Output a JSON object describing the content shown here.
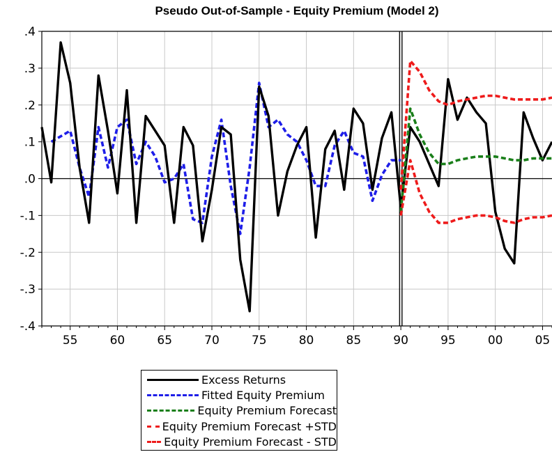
{
  "chart_data": {
    "type": "line",
    "title": "Pseudo Out-of-Sample - Equity Premium (Model 2)",
    "xlabel": "",
    "ylabel": "",
    "xlim": [
      1952,
      2006
    ],
    "ylim": [
      -0.4,
      0.4
    ],
    "x_ticks": [
      1955,
      1960,
      1965,
      1970,
      1975,
      1980,
      1985,
      1990,
      1995,
      2000,
      2005
    ],
    "x_tick_labels": [
      "55",
      "60",
      "65",
      "70",
      "75",
      "80",
      "85",
      "90",
      "95",
      "00",
      "05"
    ],
    "y_ticks": [
      -0.4,
      -0.3,
      -0.2,
      -0.1,
      0.0,
      0.1,
      0.2,
      0.3,
      0.4
    ],
    "y_tick_labels": [
      "-.4",
      "-.3",
      "-.2",
      "-.1",
      ".0",
      ".1",
      ".2",
      ".3",
      ".4"
    ],
    "grid": true,
    "zero_line": true,
    "vertical_marker_x": 1990,
    "legend_position": "bottom",
    "series": [
      {
        "name": "Excess Returns",
        "color": "#000000",
        "dashed": false,
        "points": [
          [
            1952,
            0.14
          ],
          [
            1953,
            -0.01
          ],
          [
            1954,
            0.37
          ],
          [
            1955,
            0.26
          ],
          [
            1956,
            0.03
          ],
          [
            1957,
            -0.12
          ],
          [
            1958,
            0.28
          ],
          [
            1959,
            0.13
          ],
          [
            1960,
            -0.04
          ],
          [
            1961,
            0.24
          ],
          [
            1962,
            -0.12
          ],
          [
            1963,
            0.17
          ],
          [
            1964,
            0.13
          ],
          [
            1965,
            0.09
          ],
          [
            1966,
            -0.12
          ],
          [
            1967,
            0.14
          ],
          [
            1968,
            0.09
          ],
          [
            1969,
            -0.17
          ],
          [
            1970,
            -0.03
          ],
          [
            1971,
            0.14
          ],
          [
            1972,
            0.12
          ],
          [
            1973,
            -0.22
          ],
          [
            1974,
            -0.36
          ],
          [
            1975,
            0.25
          ],
          [
            1976,
            0.17
          ],
          [
            1977,
            -0.1
          ],
          [
            1978,
            0.02
          ],
          [
            1979,
            0.09
          ],
          [
            1980,
            0.14
          ],
          [
            1981,
            -0.16
          ],
          [
            1982,
            0.08
          ],
          [
            1983,
            0.13
          ],
          [
            1984,
            -0.03
          ],
          [
            1985,
            0.19
          ],
          [
            1986,
            0.15
          ],
          [
            1987,
            -0.03
          ],
          [
            1988,
            0.11
          ],
          [
            1989,
            0.18
          ],
          [
            1990,
            -0.08
          ],
          [
            1991,
            0.14
          ],
          [
            1992,
            0.1
          ],
          [
            1993,
            0.04
          ],
          [
            1994,
            -0.02
          ],
          [
            1995,
            0.27
          ],
          [
            1996,
            0.16
          ],
          [
            1997,
            0.22
          ],
          [
            1998,
            0.18
          ],
          [
            1999,
            0.15
          ],
          [
            2000,
            -0.09
          ],
          [
            2001,
            -0.19
          ],
          [
            2002,
            -0.23
          ],
          [
            2003,
            0.18
          ],
          [
            2004,
            0.11
          ],
          [
            2005,
            0.05
          ],
          [
            2006,
            0.1
          ]
        ]
      },
      {
        "name": "Fitted Equity Premium",
        "color": "#1e1ee8",
        "dashed": true,
        "points": [
          [
            1953,
            0.1
          ],
          [
            1955,
            0.13
          ],
          [
            1956,
            0.03
          ],
          [
            1957,
            -0.05
          ],
          [
            1958,
            0.14
          ],
          [
            1959,
            0.03
          ],
          [
            1960,
            0.14
          ],
          [
            1961,
            0.16
          ],
          [
            1962,
            0.04
          ],
          [
            1963,
            0.1
          ],
          [
            1964,
            0.06
          ],
          [
            1965,
            -0.01
          ],
          [
            1966,
            0.0
          ],
          [
            1967,
            0.04
          ],
          [
            1968,
            -0.11
          ],
          [
            1969,
            -0.12
          ],
          [
            1970,
            0.06
          ],
          [
            1971,
            0.16
          ],
          [
            1972,
            -0.02
          ],
          [
            1973,
            -0.15
          ],
          [
            1974,
            0.03
          ],
          [
            1975,
            0.26
          ],
          [
            1976,
            0.14
          ],
          [
            1977,
            0.16
          ],
          [
            1978,
            0.12
          ],
          [
            1979,
            0.1
          ],
          [
            1980,
            0.05
          ],
          [
            1981,
            -0.02
          ],
          [
            1982,
            -0.02
          ],
          [
            1983,
            0.09
          ],
          [
            1984,
            0.13
          ],
          [
            1985,
            0.07
          ],
          [
            1986,
            0.06
          ],
          [
            1987,
            -0.06
          ],
          [
            1988,
            0.01
          ],
          [
            1989,
            0.05
          ],
          [
            1990,
            0.05
          ]
        ]
      },
      {
        "name": "Equity Premium Forecast",
        "color": "#1a7f1a",
        "dashed": true,
        "points": [
          [
            1990,
            -0.09
          ],
          [
            1991,
            0.19
          ],
          [
            1992,
            0.12
          ],
          [
            1993,
            0.07
          ],
          [
            1994,
            0.04
          ],
          [
            1995,
            0.04
          ],
          [
            1996,
            0.05
          ],
          [
            1997,
            0.055
          ],
          [
            1998,
            0.06
          ],
          [
            1999,
            0.06
          ],
          [
            2000,
            0.06
          ],
          [
            2001,
            0.055
          ],
          [
            2002,
            0.05
          ],
          [
            2003,
            0.05
          ],
          [
            2004,
            0.055
          ],
          [
            2005,
            0.055
          ],
          [
            2006,
            0.055
          ]
        ]
      },
      {
        "name": "Equity Premium Forecast +STD",
        "color": "#ee1b1b",
        "dashed": true,
        "points": [
          [
            1990,
            -0.03
          ],
          [
            1991,
            0.32
          ],
          [
            1992,
            0.29
          ],
          [
            1993,
            0.24
          ],
          [
            1994,
            0.21
          ],
          [
            1995,
            0.2
          ],
          [
            1996,
            0.21
          ],
          [
            1997,
            0.215
          ],
          [
            1998,
            0.22
          ],
          [
            1999,
            0.225
          ],
          [
            2000,
            0.225
          ],
          [
            2001,
            0.22
          ],
          [
            2002,
            0.215
          ],
          [
            2003,
            0.215
          ],
          [
            2004,
            0.215
          ],
          [
            2005,
            0.215
          ],
          [
            2006,
            0.22
          ]
        ]
      },
      {
        "name": "Equity Premium Forecast - STD",
        "color": "#ee1b1b",
        "dashed": true,
        "points": [
          [
            1990,
            -0.1
          ],
          [
            1991,
            0.05
          ],
          [
            1992,
            -0.04
          ],
          [
            1993,
            -0.09
          ],
          [
            1994,
            -0.12
          ],
          [
            1995,
            -0.12
          ],
          [
            1996,
            -0.11
          ],
          [
            1997,
            -0.105
          ],
          [
            1998,
            -0.1
          ],
          [
            1999,
            -0.1
          ],
          [
            2000,
            -0.105
          ],
          [
            2001,
            -0.115
          ],
          [
            2002,
            -0.12
          ],
          [
            2003,
            -0.11
          ],
          [
            2004,
            -0.105
          ],
          [
            2005,
            -0.105
          ],
          [
            2006,
            -0.1
          ]
        ]
      }
    ]
  }
}
